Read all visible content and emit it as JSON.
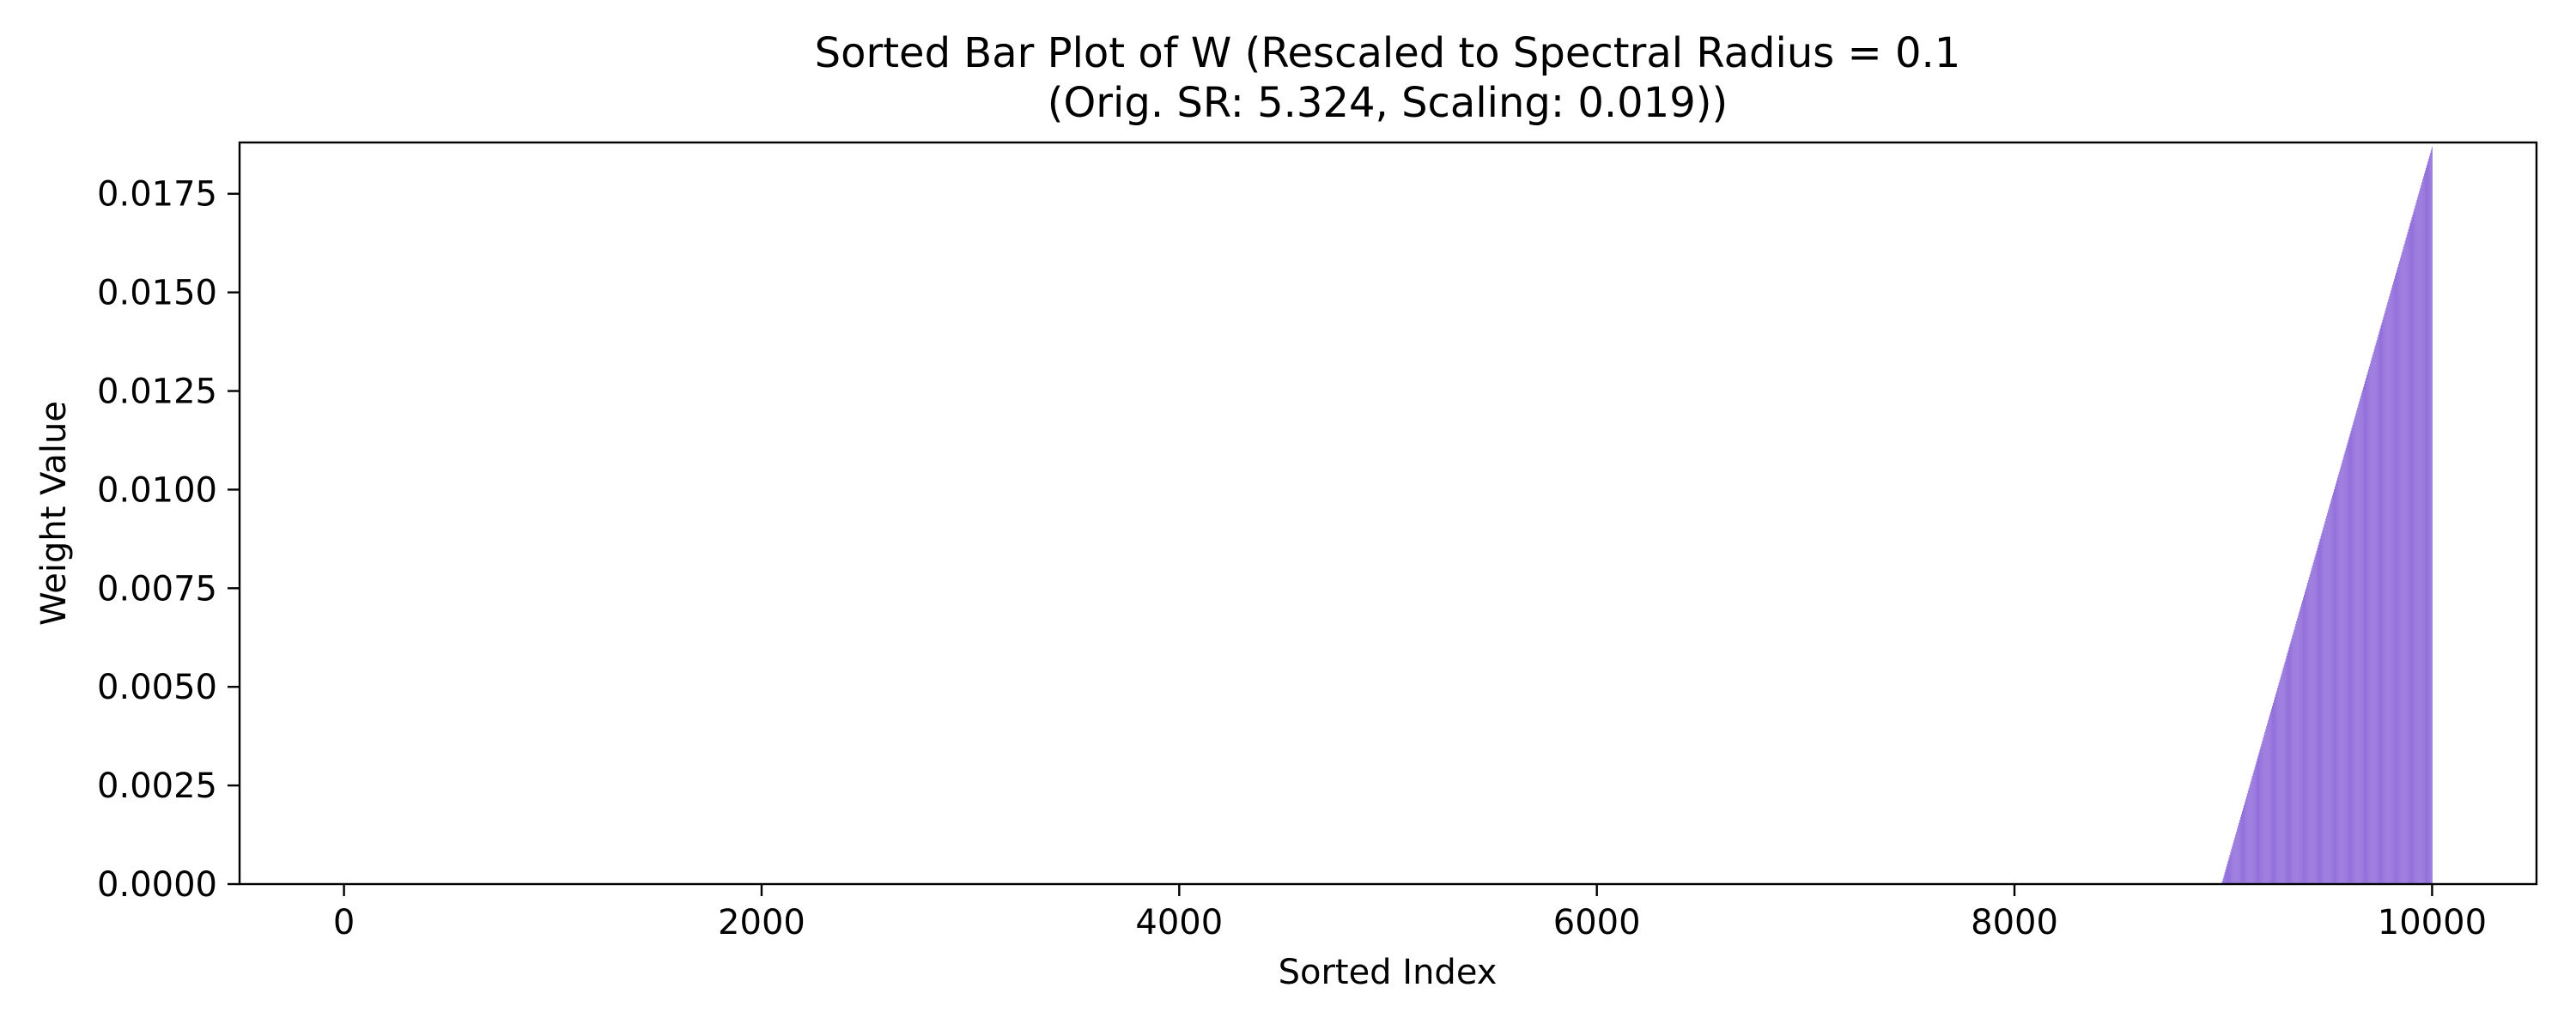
{
  "chart_data": {
    "type": "bar",
    "title_line1": "Sorted Bar Plot of W (Rescaled to Spectral Radius = 0.1",
    "title_line2": "(Orig. SR: 5.324, Scaling: 0.019))",
    "xlabel": "Sorted Index",
    "ylabel": "Weight Value",
    "xlim": [
      -500,
      10500
    ],
    "ylim": [
      0,
      0.0188
    ],
    "x_ticks": [
      0,
      2000,
      4000,
      6000,
      8000,
      10000
    ],
    "x_tick_labels": [
      "0",
      "2000",
      "4000",
      "6000",
      "8000",
      "10000"
    ],
    "y_ticks": [
      0,
      0.0025,
      0.005,
      0.0075,
      0.01,
      0.0125,
      0.015,
      0.0175
    ],
    "y_tick_labels": [
      "0.0000",
      "0.0025",
      "0.0050",
      "0.0075",
      "0.0100",
      "0.0125",
      "0.0150",
      "0.0175"
    ],
    "bar_color": "#9370db",
    "n_points": 10000,
    "nonzero_range": [
      8990,
      9999
    ],
    "nonzero_value_range": [
      0.0,
      0.0187
    ],
    "grid": false,
    "legend": "none"
  }
}
